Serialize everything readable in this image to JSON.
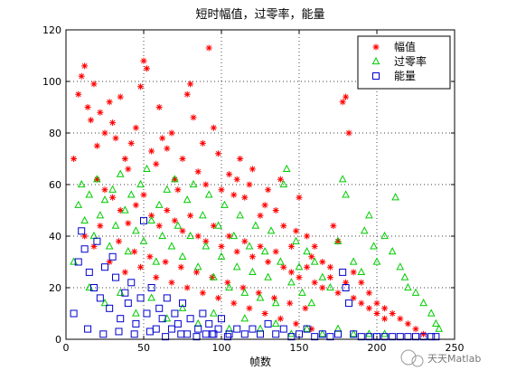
{
  "chart_data": {
    "type": "scatter",
    "title": "短时幅值，过零率，能量",
    "xlabel": "帧数",
    "ylabel": "",
    "xlim": [
      0,
      250
    ],
    "ylim": [
      0,
      120
    ],
    "xticks": [
      0,
      50,
      100,
      150,
      200,
      250
    ],
    "yticks": [
      0,
      20,
      40,
      60,
      80,
      100,
      120
    ],
    "grid": true,
    "grid_style": "dotted",
    "legend_position": "top-right",
    "series": [
      {
        "name": "幅值",
        "marker": "asterisk",
        "color": "#ff0000",
        "points": [
          [
            5,
            70
          ],
          [
            8,
            95
          ],
          [
            10,
            102
          ],
          [
            12,
            106
          ],
          [
            14,
            90
          ],
          [
            16,
            85
          ],
          [
            18,
            99
          ],
          [
            20,
            75
          ],
          [
            22,
            88
          ],
          [
            25,
            80
          ],
          [
            28,
            92
          ],
          [
            30,
            84
          ],
          [
            32,
            78
          ],
          [
            35,
            94
          ],
          [
            38,
            70
          ],
          [
            40,
            66
          ],
          [
            42,
            76
          ],
          [
            45,
            82
          ],
          [
            48,
            98
          ],
          [
            50,
            108
          ],
          [
            52,
            105
          ],
          [
            55,
            73
          ],
          [
            58,
            68
          ],
          [
            60,
            90
          ],
          [
            62,
            78
          ],
          [
            65,
            74
          ],
          [
            68,
            80
          ],
          [
            70,
            62
          ],
          [
            72,
            58
          ],
          [
            75,
            70
          ],
          [
            78,
            95
          ],
          [
            80,
            99
          ],
          [
            82,
            86
          ],
          [
            85,
            65
          ],
          [
            88,
            76
          ],
          [
            90,
            60
          ],
          [
            92,
            113
          ],
          [
            95,
            82
          ],
          [
            98,
            72
          ],
          [
            100,
            58
          ],
          [
            105,
            64
          ],
          [
            108,
            56
          ],
          [
            110,
            62
          ],
          [
            112,
            70
          ],
          [
            115,
            55
          ],
          [
            118,
            60
          ],
          [
            120,
            66
          ],
          [
            125,
            48
          ],
          [
            128,
            52
          ],
          [
            130,
            58
          ],
          [
            135,
            50
          ],
          [
            138,
            62
          ],
          [
            140,
            44
          ],
          [
            145,
            36
          ],
          [
            148,
            42
          ],
          [
            150,
            55
          ],
          [
            155,
            40
          ],
          [
            158,
            32
          ],
          [
            160,
            36
          ],
          [
            165,
            30
          ],
          [
            170,
            28
          ],
          [
            172,
            44
          ],
          [
            175,
            38
          ],
          [
            178,
            92
          ],
          [
            180,
            94
          ],
          [
            182,
            80
          ],
          [
            185,
            26
          ],
          [
            190,
            22
          ],
          [
            195,
            18
          ],
          [
            200,
            14
          ],
          [
            205,
            12
          ],
          [
            210,
            10
          ],
          [
            215,
            8
          ],
          [
            220,
            6
          ],
          [
            225,
            4
          ],
          [
            230,
            2
          ],
          [
            20,
            62
          ],
          [
            25,
            58
          ],
          [
            30,
            55
          ],
          [
            35,
            50
          ],
          [
            40,
            45
          ],
          [
            45,
            52
          ],
          [
            50,
            56
          ],
          [
            55,
            48
          ],
          [
            60,
            44
          ],
          [
            65,
            50
          ],
          [
            70,
            46
          ],
          [
            75,
            42
          ],
          [
            80,
            48
          ],
          [
            85,
            40
          ],
          [
            90,
            38
          ],
          [
            95,
            44
          ],
          [
            100,
            36
          ],
          [
            105,
            40
          ],
          [
            110,
            34
          ],
          [
            115,
            38
          ],
          [
            120,
            32
          ],
          [
            125,
            36
          ],
          [
            130,
            30
          ],
          [
            135,
            34
          ],
          [
            140,
            28
          ],
          [
            145,
            26
          ],
          [
            150,
            24
          ],
          [
            155,
            28
          ],
          [
            160,
            22
          ],
          [
            165,
            20
          ],
          [
            170,
            24
          ],
          [
            175,
            18
          ],
          [
            180,
            22
          ],
          [
            185,
            16
          ],
          [
            190,
            14
          ],
          [
            195,
            12
          ],
          [
            200,
            10
          ],
          [
            205,
            8
          ],
          [
            12,
            40
          ],
          [
            18,
            36
          ],
          [
            22,
            44
          ],
          [
            28,
            30
          ],
          [
            34,
            38
          ],
          [
            38,
            26
          ],
          [
            44,
            34
          ],
          [
            48,
            28
          ],
          [
            54,
            32
          ],
          [
            58,
            24
          ],
          [
            64,
            30
          ],
          [
            68,
            22
          ],
          [
            74,
            28
          ],
          [
            78,
            20
          ],
          [
            84,
            26
          ],
          [
            88,
            18
          ],
          [
            94,
            24
          ],
          [
            98,
            16
          ],
          [
            104,
            22
          ],
          [
            108,
            14
          ],
          [
            114,
            20
          ],
          [
            118,
            12
          ],
          [
            124,
            18
          ],
          [
            128,
            10
          ],
          [
            134,
            16
          ],
          [
            138,
            8
          ],
          [
            144,
            14
          ],
          [
            148,
            6
          ],
          [
            154,
            12
          ],
          [
            158,
            4
          ]
        ]
      },
      {
        "name": "过零率",
        "marker": "triangle",
        "color": "#00cc00",
        "points": [
          [
            5,
            30
          ],
          [
            8,
            52
          ],
          [
            10,
            60
          ],
          [
            12,
            46
          ],
          [
            15,
            56
          ],
          [
            18,
            40
          ],
          [
            20,
            62
          ],
          [
            22,
            48
          ],
          [
            25,
            54
          ],
          [
            28,
            36
          ],
          [
            30,
            58
          ],
          [
            32,
            44
          ],
          [
            35,
            64
          ],
          [
            38,
            50
          ],
          [
            40,
            34
          ],
          [
            42,
            56
          ],
          [
            45,
            42
          ],
          [
            48,
            60
          ],
          [
            50,
            38
          ],
          [
            52,
            66
          ],
          [
            55,
            46
          ],
          [
            58,
            30
          ],
          [
            60,
            52
          ],
          [
            62,
            40
          ],
          [
            65,
            58
          ],
          [
            68,
            36
          ],
          [
            70,
            62
          ],
          [
            72,
            44
          ],
          [
            75,
            32
          ],
          [
            78,
            54
          ],
          [
            80,
            40
          ],
          [
            82,
            60
          ],
          [
            85,
            28
          ],
          [
            88,
            48
          ],
          [
            90,
            36
          ],
          [
            92,
            56
          ],
          [
            95,
            24
          ],
          [
            98,
            44
          ],
          [
            100,
            32
          ],
          [
            102,
            52
          ],
          [
            105,
            20
          ],
          [
            108,
            40
          ],
          [
            110,
            28
          ],
          [
            112,
            48
          ],
          [
            115,
            18
          ],
          [
            118,
            36
          ],
          [
            120,
            26
          ],
          [
            122,
            44
          ],
          [
            125,
            16
          ],
          [
            128,
            34
          ],
          [
            130,
            24
          ],
          [
            132,
            42
          ],
          [
            135,
            14
          ],
          [
            138,
            30
          ],
          [
            140,
            60
          ],
          [
            142,
            66
          ],
          [
            145,
            22
          ],
          [
            148,
            38
          ],
          [
            150,
            28
          ],
          [
            152,
            18
          ],
          [
            155,
            34
          ],
          [
            158,
            14
          ],
          [
            160,
            30
          ],
          [
            165,
            24
          ],
          [
            170,
            20
          ],
          [
            175,
            38
          ],
          [
            178,
            62
          ],
          [
            180,
            56
          ],
          [
            185,
            30
          ],
          [
            190,
            26
          ],
          [
            192,
            42
          ],
          [
            195,
            48
          ],
          [
            198,
            36
          ],
          [
            200,
            30
          ],
          [
            205,
            40
          ],
          [
            210,
            34
          ],
          [
            212,
            55
          ],
          [
            215,
            28
          ],
          [
            218,
            24
          ],
          [
            220,
            20
          ],
          [
            225,
            18
          ],
          [
            230,
            14
          ],
          [
            235,
            10
          ],
          [
            238,
            6
          ],
          [
            240,
            4
          ],
          [
            15,
            20
          ],
          [
            25,
            14
          ],
          [
            35,
            18
          ],
          [
            45,
            10
          ],
          [
            55,
            16
          ],
          [
            65,
            8
          ],
          [
            75,
            12
          ],
          [
            85,
            6
          ],
          [
            95,
            10
          ],
          [
            105,
            4
          ],
          [
            115,
            8
          ],
          [
            125,
            4
          ],
          [
            135,
            6
          ],
          [
            145,
            2
          ],
          [
            155,
            4
          ],
          [
            165,
            2
          ],
          [
            175,
            4
          ],
          [
            185,
            2
          ],
          [
            195,
            2
          ],
          [
            205,
            2
          ]
        ]
      },
      {
        "name": "能量",
        "marker": "square",
        "color": "#0000cc",
        "points": [
          [
            5,
            10
          ],
          [
            8,
            30
          ],
          [
            10,
            42
          ],
          [
            12,
            35
          ],
          [
            15,
            26
          ],
          [
            18,
            20
          ],
          [
            20,
            38
          ],
          [
            22,
            16
          ],
          [
            25,
            28
          ],
          [
            28,
            12
          ],
          [
            30,
            32
          ],
          [
            32,
            24
          ],
          [
            35,
            8
          ],
          [
            38,
            18
          ],
          [
            40,
            14
          ],
          [
            42,
            22
          ],
          [
            45,
            6
          ],
          [
            48,
            16
          ],
          [
            50,
            46
          ],
          [
            52,
            10
          ],
          [
            55,
            20
          ],
          [
            58,
            4
          ],
          [
            60,
            12
          ],
          [
            62,
            8
          ],
          [
            65,
            16
          ],
          [
            68,
            4
          ],
          [
            70,
            10
          ],
          [
            72,
            6
          ],
          [
            75,
            14
          ],
          [
            78,
            2
          ],
          [
            80,
            8
          ],
          [
            85,
            4
          ],
          [
            88,
            10
          ],
          [
            90,
            2
          ],
          [
            92,
            6
          ],
          [
            95,
            2
          ],
          [
            98,
            4
          ],
          [
            100,
            8
          ],
          [
            105,
            2
          ],
          [
            110,
            4
          ],
          [
            115,
            2
          ],
          [
            120,
            4
          ],
          [
            125,
            2
          ],
          [
            130,
            6
          ],
          [
            135,
            2
          ],
          [
            140,
            4
          ],
          [
            145,
            1
          ],
          [
            150,
            2
          ],
          [
            155,
            4
          ],
          [
            160,
            1
          ],
          [
            165,
            2
          ],
          [
            170,
            1
          ],
          [
            175,
            2
          ],
          [
            178,
            26
          ],
          [
            180,
            20
          ],
          [
            182,
            14
          ],
          [
            185,
            2
          ],
          [
            190,
            1
          ],
          [
            195,
            1
          ],
          [
            200,
            1
          ],
          [
            205,
            1
          ],
          [
            210,
            1
          ],
          [
            215,
            1
          ],
          [
            220,
            1
          ],
          [
            225,
            1
          ],
          [
            230,
            1
          ],
          [
            235,
            1
          ],
          [
            238,
            1
          ],
          [
            14,
            4
          ],
          [
            24,
            2
          ],
          [
            34,
            3
          ],
          [
            44,
            2
          ],
          [
            54,
            3
          ],
          [
            64,
            1
          ],
          [
            74,
            2
          ],
          [
            84,
            1
          ],
          [
            94,
            2
          ],
          [
            104,
            1
          ]
        ]
      }
    ]
  },
  "watermark": {
    "text": "天天Matlab",
    "icon": "wechat-icon"
  }
}
